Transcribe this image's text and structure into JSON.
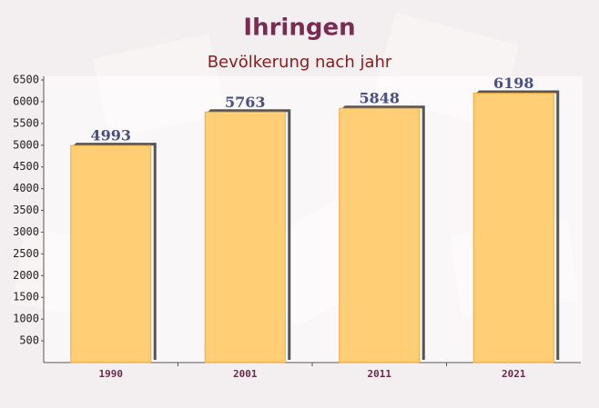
{
  "chart_data": {
    "type": "bar",
    "title": "Ihringen",
    "subtitle": "Bevölkerung nach jahr",
    "categories": [
      "1990",
      "2001",
      "2011",
      "2021"
    ],
    "values": [
      4993,
      5763,
      5848,
      6198
    ],
    "color": "#ffc966",
    "ylim": [
      0,
      6500
    ],
    "yticks": [
      500,
      1000,
      1500,
      2000,
      2500,
      3000,
      3500,
      4000,
      4500,
      5000,
      5500,
      6000,
      6500
    ],
    "grid": false
  }
}
